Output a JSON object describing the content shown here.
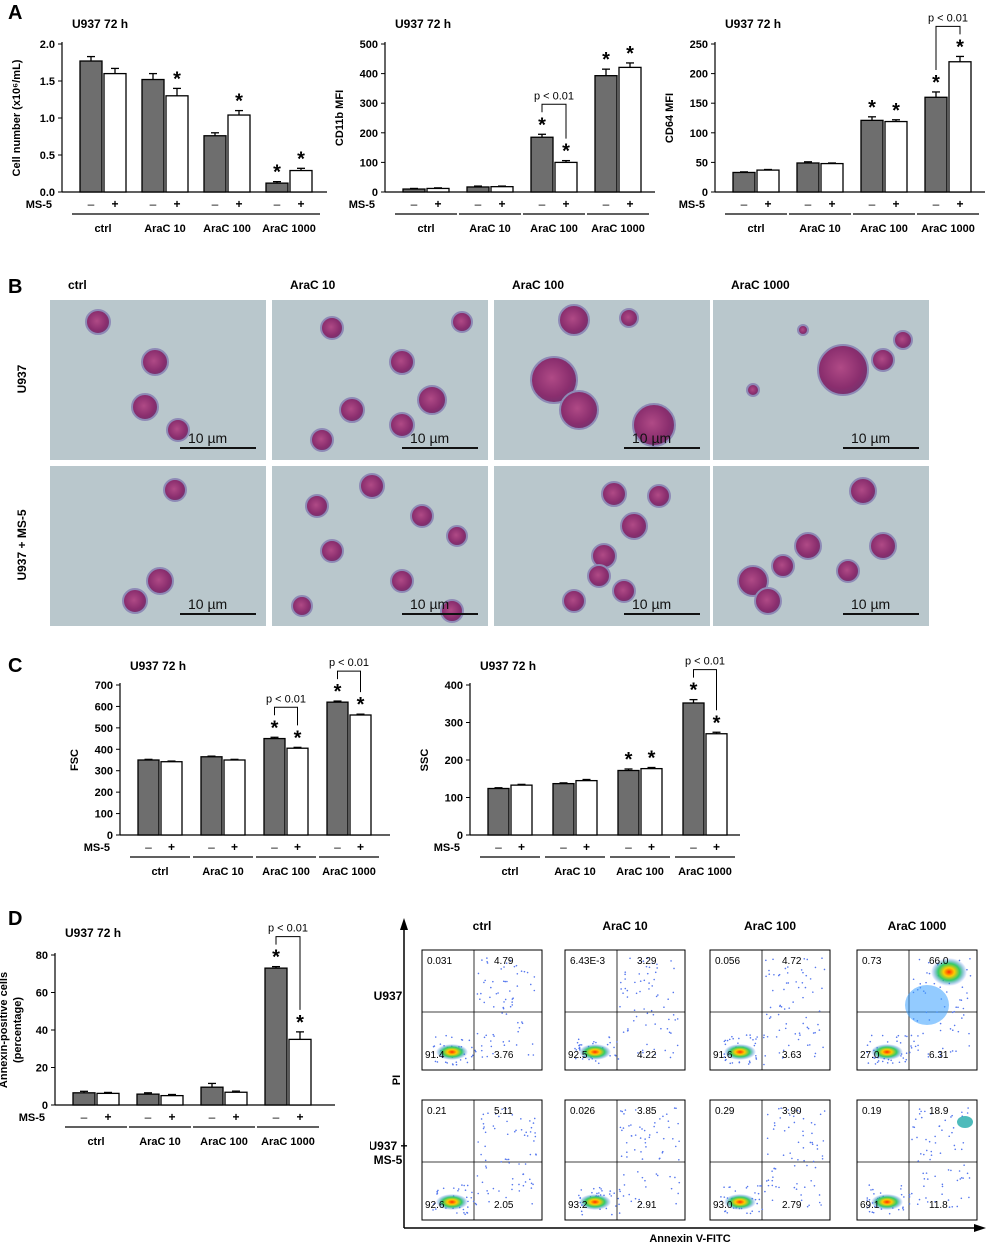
{
  "panels": {
    "a": "A",
    "b": "B",
    "c": "C",
    "d": "D"
  },
  "common": {
    "title": "U937 72 h",
    "ms5_label": "MS-5",
    "minus": "–",
    "plus": "+",
    "star": "*",
    "pval": "p < 0.01",
    "groups": [
      "ctrl",
      "AraC 10",
      "AraC 100",
      "AraC 1000"
    ],
    "bar_colors": {
      "no_ms5": "#6e6e6e",
      "ms5": "#ffffff"
    }
  },
  "chart_data": [
    {
      "id": "A1",
      "type": "bar",
      "title": "U937 72 h",
      "ylabel": "Cell number (x10⁶/mL)",
      "ylim": [
        0,
        2.0
      ],
      "yticks": [
        "0.0",
        "0.5",
        "1.0",
        "1.5",
        "2.0"
      ],
      "ytick_vals": [
        0,
        0.5,
        1.0,
        1.5,
        2.0
      ],
      "categories": [
        "ctrl",
        "AraC 10",
        "AraC 100",
        "AraC 1000"
      ],
      "series": [
        {
          "name": "MS-5 –",
          "values": [
            1.77,
            1.52,
            0.76,
            0.12
          ],
          "errors": [
            0.06,
            0.08,
            0.04,
            0.02
          ]
        },
        {
          "name": "MS-5 +",
          "values": [
            1.6,
            1.3,
            1.04,
            0.29
          ],
          "errors": [
            0.07,
            0.1,
            0.06,
            0.03
          ]
        }
      ],
      "stars": [
        [
          0,
          0,
          0,
          1
        ],
        [
          0,
          1,
          1,
          1
        ]
      ],
      "pvals": []
    },
    {
      "id": "A2",
      "type": "bar",
      "title": "U937 72 h",
      "ylabel": "CD11b MFI",
      "ylim": [
        0,
        500
      ],
      "yticks": [
        "0",
        "100",
        "200",
        "300",
        "400",
        "500"
      ],
      "ytick_vals": [
        0,
        100,
        200,
        300,
        400,
        500
      ],
      "categories": [
        "ctrl",
        "AraC 10",
        "AraC 100",
        "AraC 1000"
      ],
      "series": [
        {
          "name": "MS-5 –",
          "values": [
            10,
            17,
            185,
            393
          ],
          "errors": [
            2,
            3,
            10,
            22
          ]
        },
        {
          "name": "MS-5 +",
          "values": [
            12,
            18,
            100,
            421
          ],
          "errors": [
            2,
            2,
            6,
            15
          ]
        }
      ],
      "stars": [
        [
          0,
          0,
          1,
          1
        ],
        [
          0,
          0,
          1,
          1
        ]
      ],
      "pvals": [
        {
          "group": 2,
          "label": "p < 0.01"
        }
      ]
    },
    {
      "id": "A3",
      "type": "bar",
      "title": "U937 72 h",
      "ylabel": "CD64 MFI",
      "ylim": [
        0,
        250
      ],
      "yticks": [
        "0",
        "50",
        "100",
        "150",
        "200",
        "250"
      ],
      "ytick_vals": [
        0,
        50,
        100,
        150,
        200,
        250
      ],
      "categories": [
        "ctrl",
        "AraC 10",
        "AraC 100",
        "AraC 1000"
      ],
      "series": [
        {
          "name": "MS-5 –",
          "values": [
            33,
            49,
            121,
            160
          ],
          "errors": [
            1,
            2,
            6,
            9
          ]
        },
        {
          "name": "MS-5 +",
          "values": [
            37,
            48,
            119,
            220
          ],
          "errors": [
            1,
            1,
            3,
            9
          ]
        }
      ],
      "stars": [
        [
          0,
          0,
          1,
          1
        ],
        [
          0,
          0,
          1,
          1
        ]
      ],
      "pvals": [
        {
          "group": 3,
          "label": "p < 0.01"
        }
      ]
    },
    {
      "id": "C1",
      "type": "bar",
      "title": "U937 72 h",
      "ylabel": "FSC",
      "ylim": [
        0,
        700
      ],
      "yticks": [
        "0",
        "100",
        "200",
        "300",
        "400",
        "500",
        "600",
        "700"
      ],
      "ytick_vals": [
        0,
        100,
        200,
        300,
        400,
        500,
        600,
        700
      ],
      "categories": [
        "ctrl",
        "AraC 10",
        "AraC 100",
        "AraC 1000"
      ],
      "series": [
        {
          "name": "MS-5 –",
          "values": [
            350,
            365,
            450,
            620
          ],
          "errors": [
            3,
            3,
            6,
            5
          ]
        },
        {
          "name": "MS-5 +",
          "values": [
            342,
            350,
            405,
            560
          ],
          "errors": [
            3,
            3,
            4,
            4
          ]
        }
      ],
      "stars": [
        [
          0,
          0,
          1,
          1
        ],
        [
          0,
          0,
          1,
          1
        ]
      ],
      "pvals": [
        {
          "group": 2,
          "label": "p < 0.01"
        },
        {
          "group": 3,
          "label": "p < 0.01"
        }
      ]
    },
    {
      "id": "C2",
      "type": "bar",
      "title": "U937 72 h",
      "ylabel": "SSC",
      "ylim": [
        0,
        400
      ],
      "yticks": [
        "0",
        "100",
        "200",
        "300",
        "400"
      ],
      "ytick_vals": [
        0,
        100,
        200,
        300,
        400
      ],
      "categories": [
        "ctrl",
        "AraC 10",
        "AraC 100",
        "AraC 1000"
      ],
      "series": [
        {
          "name": "MS-5 –",
          "values": [
            124,
            137,
            172,
            352
          ],
          "errors": [
            2,
            2,
            4,
            9
          ]
        },
        {
          "name": "MS-5 +",
          "values": [
            133,
            145,
            177,
            270
          ],
          "errors": [
            2,
            3,
            3,
            4
          ]
        }
      ],
      "stars": [
        [
          0,
          0,
          1,
          1
        ],
        [
          0,
          0,
          1,
          1
        ]
      ],
      "pvals": [
        {
          "group": 3,
          "label": "p < 0.01"
        }
      ]
    },
    {
      "id": "D1",
      "type": "bar",
      "title": "U937 72 h",
      "ylabel": "Annexin-positive cells (percentage)",
      "ylim": [
        0,
        80
      ],
      "yticks": [
        "0",
        "20",
        "40",
        "60",
        "80"
      ],
      "ytick_vals": [
        0,
        20,
        40,
        60,
        80
      ],
      "categories": [
        "ctrl",
        "AraC 10",
        "AraC 100",
        "AraC 1000"
      ],
      "series": [
        {
          "name": "MS-5 –",
          "values": [
            6.5,
            5.8,
            9.5,
            73
          ],
          "errors": [
            0.8,
            0.7,
            2,
            0.8
          ]
        },
        {
          "name": "MS-5 +",
          "values": [
            6.2,
            5.0,
            6.8,
            35
          ],
          "errors": [
            0.5,
            0.6,
            0.6,
            4
          ]
        }
      ],
      "stars": [
        [
          0,
          0,
          0,
          1
        ],
        [
          0,
          0,
          0,
          1
        ]
      ],
      "pvals": [
        {
          "group": 3,
          "label": "p < 0.01"
        }
      ]
    }
  ],
  "micro": {
    "col_labels": [
      "ctrl",
      "AraC 10",
      "AraC 100",
      "AraC 1000"
    ],
    "row_labels": [
      "U937",
      "U937 + MS-5"
    ],
    "scale_label": "10 µm"
  },
  "flow": {
    "col_labels": [
      "ctrl",
      "AraC 10",
      "AraC 100",
      "AraC 1000"
    ],
    "row_labels": [
      "U937",
      "U937 +",
      "MS-5"
    ],
    "y_axis": "PI",
    "x_axis": "Annexin V-FITC",
    "quadrants": [
      [
        {
          "ul": "0.031",
          "ur": "4.79",
          "ll": "91.4",
          "lr": "3.76"
        },
        {
          "ul": "6.43E-3",
          "ur": "3.29",
          "ll": "92.5",
          "lr": "4.22"
        },
        {
          "ul": "0.056",
          "ur": "4.72",
          "ll": "91.6",
          "lr": "3.63"
        },
        {
          "ul": "0.73",
          "ur": "66.0",
          "ll": "27.0",
          "lr": "6.31"
        }
      ],
      [
        {
          "ul": "0.21",
          "ur": "5.11",
          "ll": "92.6",
          "lr": "2.05"
        },
        {
          "ul": "0.026",
          "ur": "3.85",
          "ll": "93.2",
          "lr": "2.91"
        },
        {
          "ul": "0.29",
          "ur": "3.90",
          "ll": "93.0",
          "lr": "2.79"
        },
        {
          "ul": "0.19",
          "ur": "18.9",
          "ll": "69.1",
          "lr": "11.8"
        }
      ]
    ]
  }
}
